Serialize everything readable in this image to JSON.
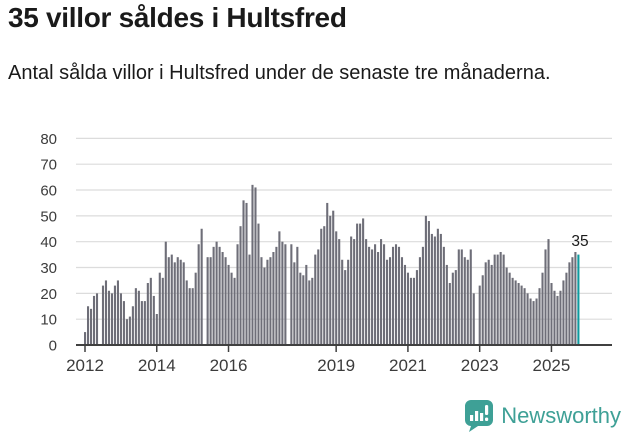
{
  "header": {
    "title": "35 villor såldes i Hultsfred",
    "subtitle": "Antal sålda villor i Hultsfred under de senaste tre månaderna."
  },
  "chart_data": {
    "type": "bar",
    "title": "35 villor såldes i Hultsfred",
    "subtitle": "Antal sålda villor i Hultsfred under de senaste tre månaderna.",
    "unit": "villor",
    "x_start": "2012-01",
    "x_end": "2025-10",
    "frequency": "monthly",
    "values": [
      5,
      15,
      14,
      19,
      20,
      null,
      23,
      25,
      21,
      20,
      23,
      25,
      20,
      17,
      10,
      11,
      15,
      22,
      21,
      17,
      17,
      24,
      26,
      19,
      12,
      28,
      26,
      40,
      34,
      35,
      32,
      34,
      33,
      32,
      25,
      22,
      22,
      28,
      39,
      45,
      null,
      34,
      34,
      38,
      40,
      38,
      36,
      34,
      31,
      28,
      26,
      39,
      46,
      56,
      55,
      35,
      62,
      61,
      47,
      34,
      30,
      33,
      34,
      36,
      38,
      44,
      40,
      39,
      null,
      39,
      32,
      38,
      28,
      27,
      31,
      25,
      26,
      35,
      37,
      45,
      46,
      55,
      50,
      52,
      44,
      41,
      33,
      29,
      33,
      42,
      41,
      47,
      47,
      49,
      41,
      38,
      37,
      39,
      36,
      41,
      39,
      33,
      34,
      38,
      39,
      38,
      34,
      31,
      28,
      26,
      26,
      29,
      34,
      38,
      50,
      48,
      43,
      42,
      45,
      43,
      38,
      31,
      24,
      28,
      29,
      37,
      37,
      34,
      33,
      37,
      20,
      null,
      23,
      27,
      32,
      33,
      31,
      35,
      35,
      36,
      35,
      30,
      28,
      26,
      25,
      24,
      23,
      22,
      20,
      18,
      17,
      18,
      22,
      28,
      37,
      41,
      24,
      21,
      19,
      21,
      25,
      28,
      32,
      34,
      36,
      35
    ],
    "highlight_last": true,
    "annotation": {
      "label": "35"
    },
    "y_axis": {
      "min": 0,
      "max": 80,
      "ticks": [
        0,
        10,
        20,
        30,
        40,
        50,
        60,
        70,
        80
      ]
    },
    "x_axis": {
      "tick_years": [
        2012,
        2014,
        2016,
        2019,
        2021,
        2023,
        2025
      ]
    },
    "grid": true,
    "legend": false,
    "colors": {
      "bar": "#6e6e78",
      "highlight": "#0f9a9e",
      "grid": "#dcdcdc",
      "axis": "#404040",
      "axis_text": "#3c3c3c",
      "annotation_text": "#1a1a1a"
    }
  },
  "footer": {
    "brand": "Newsworthy",
    "brand_color": "#3ea096"
  }
}
